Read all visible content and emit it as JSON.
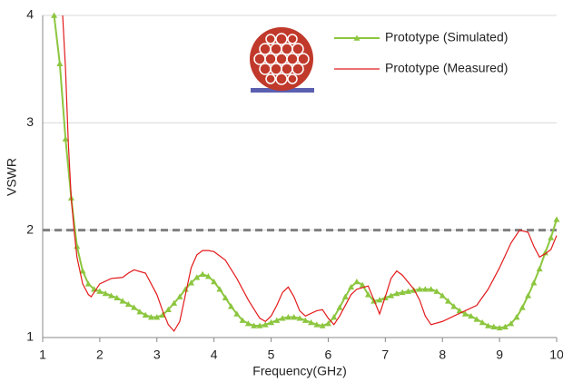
{
  "chart_data": {
    "type": "line",
    "x_label": "Frequency(GHz)",
    "y_label": "VSWR",
    "xlim": [
      1,
      10
    ],
    "ylim": [
      1,
      4
    ],
    "xticks": [
      1,
      2,
      3,
      4,
      5,
      6,
      7,
      8,
      9,
      10
    ],
    "yticks": [
      1,
      2,
      3,
      4
    ],
    "grid": true,
    "legend": "top-right",
    "reference_line": {
      "value": 2,
      "color": "#7f7f7f",
      "dashed": true
    },
    "series": [
      {
        "name": "Prototype (Simulated)",
        "color": "#8cc63f",
        "marker": "triangle",
        "x": [
          1.2,
          1.3,
          1.4,
          1.5,
          1.6,
          1.7,
          1.8,
          1.9,
          2.0,
          2.1,
          2.2,
          2.3,
          2.4,
          2.5,
          2.6,
          2.7,
          2.8,
          2.9,
          3.0,
          3.1,
          3.2,
          3.3,
          3.4,
          3.5,
          3.6,
          3.7,
          3.8,
          3.9,
          4.0,
          4.1,
          4.2,
          4.3,
          4.4,
          4.5,
          4.6,
          4.7,
          4.8,
          4.9,
          5.0,
          5.1,
          5.2,
          5.3,
          5.4,
          5.5,
          5.6,
          5.7,
          5.8,
          5.9,
          6.0,
          6.1,
          6.2,
          6.3,
          6.4,
          6.5,
          6.6,
          6.7,
          6.8,
          6.9,
          7.0,
          7.1,
          7.2,
          7.3,
          7.4,
          7.5,
          7.6,
          7.7,
          7.8,
          7.9,
          8.0,
          8.1,
          8.2,
          8.3,
          8.4,
          8.5,
          8.6,
          8.7,
          8.8,
          8.9,
          9.0,
          9.1,
          9.2,
          9.3,
          9.4,
          9.5,
          9.6,
          9.7,
          9.8,
          9.9,
          10.0
        ],
        "values": [
          4.0,
          3.55,
          2.85,
          2.3,
          1.85,
          1.62,
          1.5,
          1.45,
          1.43,
          1.41,
          1.39,
          1.37,
          1.34,
          1.31,
          1.28,
          1.24,
          1.21,
          1.19,
          1.19,
          1.21,
          1.26,
          1.32,
          1.38,
          1.45,
          1.51,
          1.56,
          1.59,
          1.57,
          1.52,
          1.45,
          1.37,
          1.29,
          1.22,
          1.16,
          1.13,
          1.11,
          1.11,
          1.12,
          1.14,
          1.16,
          1.18,
          1.19,
          1.19,
          1.18,
          1.16,
          1.14,
          1.12,
          1.11,
          1.13,
          1.19,
          1.28,
          1.38,
          1.47,
          1.52,
          1.49,
          1.4,
          1.34,
          1.35,
          1.37,
          1.39,
          1.41,
          1.42,
          1.43,
          1.44,
          1.45,
          1.45,
          1.45,
          1.43,
          1.39,
          1.34,
          1.29,
          1.25,
          1.22,
          1.2,
          1.17,
          1.14,
          1.11,
          1.1,
          1.09,
          1.1,
          1.13,
          1.19,
          1.28,
          1.39,
          1.51,
          1.64,
          1.79,
          1.93,
          2.1
        ]
      },
      {
        "name": "Prototype (Measured)",
        "color": "#e31a1c",
        "x": [
          1.35,
          1.4,
          1.45,
          1.5,
          1.55,
          1.6,
          1.7,
          1.8,
          1.85,
          1.9,
          2.0,
          2.2,
          2.4,
          2.5,
          2.6,
          2.8,
          2.9,
          3.0,
          3.1,
          3.2,
          3.3,
          3.4,
          3.5,
          3.6,
          3.7,
          3.8,
          3.9,
          4.0,
          4.2,
          4.4,
          4.6,
          4.8,
          4.9,
          5.0,
          5.1,
          5.2,
          5.3,
          5.4,
          5.5,
          5.6,
          5.8,
          5.9,
          6.0,
          6.1,
          6.2,
          6.4,
          6.5,
          6.7,
          6.8,
          6.9,
          7.0,
          7.1,
          7.2,
          7.3,
          7.5,
          7.6,
          7.7,
          7.8,
          8.0,
          8.2,
          8.4,
          8.6,
          8.8,
          9.0,
          9.2,
          9.35,
          9.5,
          9.6,
          9.7,
          9.8,
          9.9,
          10.0
        ],
        "values": [
          4.0,
          3.5,
          2.8,
          2.3,
          2.0,
          1.75,
          1.5,
          1.4,
          1.38,
          1.42,
          1.5,
          1.55,
          1.56,
          1.6,
          1.63,
          1.6,
          1.5,
          1.4,
          1.25,
          1.12,
          1.06,
          1.15,
          1.4,
          1.65,
          1.77,
          1.81,
          1.81,
          1.8,
          1.72,
          1.55,
          1.35,
          1.18,
          1.15,
          1.2,
          1.3,
          1.42,
          1.47,
          1.38,
          1.25,
          1.2,
          1.25,
          1.26,
          1.18,
          1.12,
          1.2,
          1.4,
          1.45,
          1.48,
          1.35,
          1.22,
          1.38,
          1.55,
          1.62,
          1.58,
          1.45,
          1.35,
          1.2,
          1.12,
          1.15,
          1.2,
          1.25,
          1.3,
          1.45,
          1.65,
          1.88,
          2.0,
          1.98,
          1.85,
          1.75,
          1.78,
          1.82,
          1.95
        ]
      }
    ]
  }
}
